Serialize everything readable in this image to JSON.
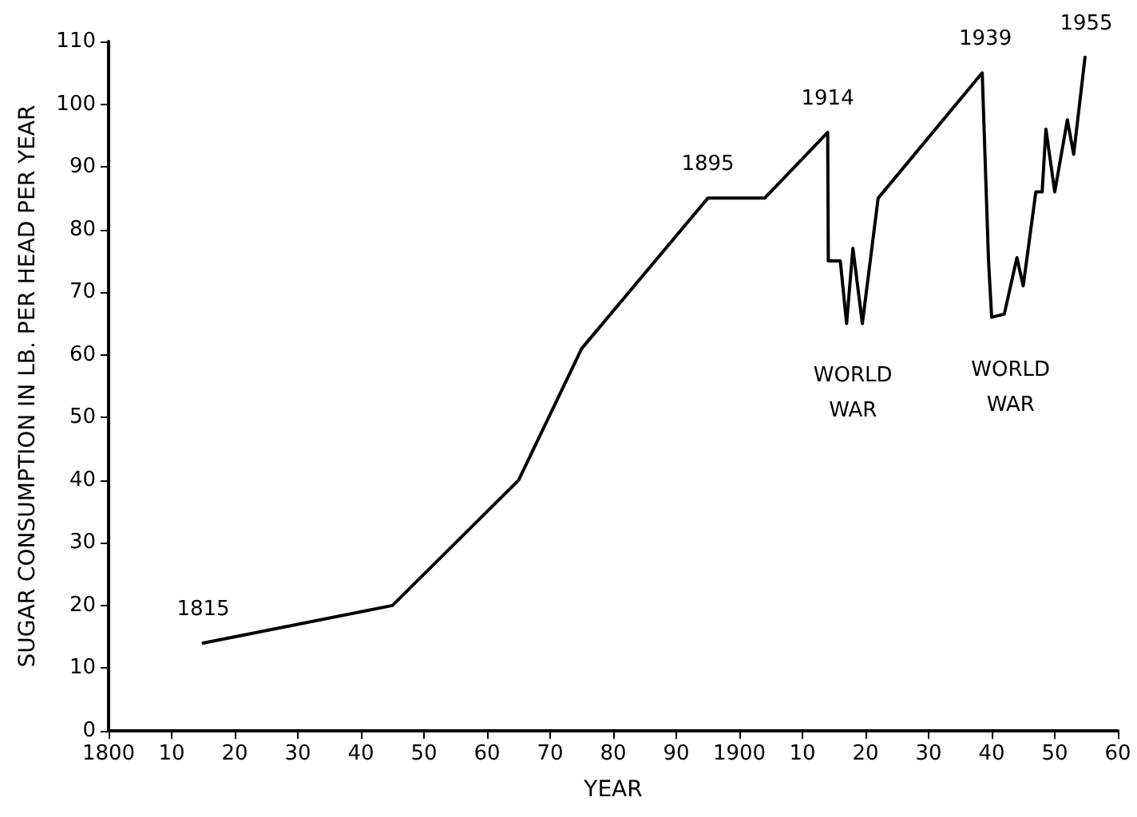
{
  "chart_data": {
    "type": "line",
    "xlabel": "YEAR",
    "ylabel": "SUGAR CONSUMPTION IN LB. PER HEAD PER YEAR",
    "x": [
      1815,
      1845,
      1865,
      1875,
      1895,
      1904,
      1914,
      1914.1,
      1916,
      1917,
      1918,
      1919.5,
      1922,
      1938.5,
      1939.5,
      1940,
      1942,
      1944,
      1945,
      1947,
      1948,
      1948.6,
      1950,
      1952,
      1953,
      1954.8
    ],
    "series": [
      {
        "color": "#000000",
        "values": [
          14,
          20,
          40,
          61,
          85,
          85,
          95.5,
          75,
          75,
          65,
          77,
          65,
          85,
          105,
          75,
          66,
          66.5,
          75.5,
          71,
          86,
          86,
          96,
          86,
          97.5,
          92,
          107.5
        ]
      }
    ],
    "xlim": [
      1800,
      1960
    ],
    "xticks": [
      1800,
      {
        "value": 1810,
        "label": "10"
      },
      {
        "value": 1820,
        "label": "20"
      },
      {
        "value": 1830,
        "label": "30"
      },
      {
        "value": 1840,
        "label": "40"
      },
      {
        "value": 1850,
        "label": "50"
      },
      {
        "value": 1860,
        "label": "60"
      },
      {
        "value": 1870,
        "label": "70"
      },
      {
        "value": 1880,
        "label": "80"
      },
      {
        "value": 1890,
        "label": "90"
      },
      1900,
      {
        "value": 1910,
        "label": "10"
      },
      {
        "value": 1920,
        "label": "20"
      },
      {
        "value": 1930,
        "label": "30"
      },
      {
        "value": 1940,
        "label": "40"
      },
      {
        "value": 1950,
        "label": "50"
      },
      {
        "value": 1960,
        "label": "60"
      }
    ],
    "ylim": [
      0,
      110
    ],
    "yticks": [
      0,
      10,
      20,
      30,
      40,
      50,
      60,
      70,
      80,
      90,
      100,
      110
    ],
    "grid": false,
    "marker": "none",
    "line_style": "solid",
    "annotations": [
      {
        "text": "1815",
        "x": 1815,
        "y": 14
      },
      {
        "text": "1895",
        "x": 1895,
        "y": 85
      },
      {
        "text": "1914",
        "x": 1914,
        "y": 95.5
      },
      {
        "text": "1939",
        "x": 1939,
        "y": 105
      },
      {
        "text": "1955",
        "x": 1955,
        "y": 107.5
      },
      {
        "text": "WORLD WAR",
        "x": 1918,
        "y": 65
      },
      {
        "text": "WORLD WAR",
        "x": 1943,
        "y": 66
      }
    ]
  }
}
